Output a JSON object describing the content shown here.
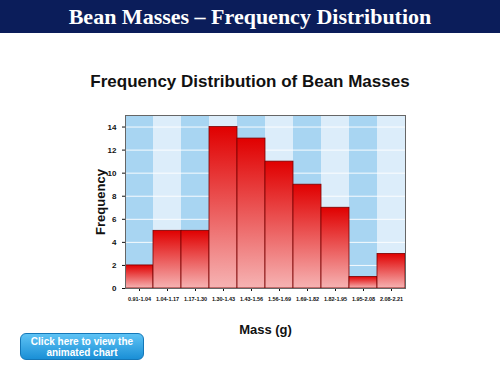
{
  "header": {
    "title": "Bean Masses – Frequency Distribution"
  },
  "chart_data": {
    "type": "bar",
    "title": "Frequency Distribution of Bean Masses",
    "x_label": "Mass (g)",
    "y_label": "Frequency",
    "categories": [
      "0.91-1.04",
      "1.04-1.17",
      "1.17-1.30",
      "1.30-1.43",
      "1.43-1.56",
      "1.56-1.69",
      "1.69-1.82",
      "1.82-1.95",
      "1.95-2.08",
      "2.08-2.21"
    ],
    "values": [
      2,
      5,
      5,
      14,
      13,
      11,
      9,
      7,
      1,
      3
    ],
    "color": "#e00000",
    "ylim": [
      0,
      15
    ],
    "yticks": [
      0,
      2,
      4,
      6,
      8,
      10,
      12,
      14
    ],
    "grid": true
  },
  "button": {
    "label": "Click here to view the animated chart"
  }
}
